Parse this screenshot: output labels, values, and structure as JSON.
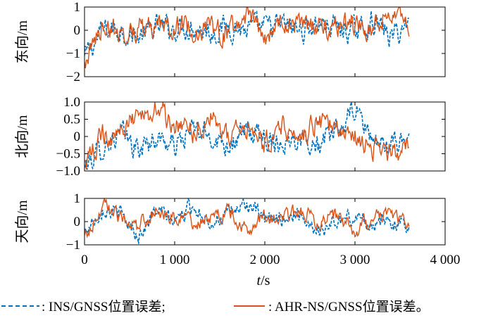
{
  "chart_data": [
    {
      "type": "line",
      "ylabel": "东向/m",
      "ylim": [
        -2,
        1
      ],
      "yticks": [
        -2,
        -1,
        0,
        1
      ],
      "ytick_labels": [
        "−2",
        "−1",
        "0",
        "1"
      ],
      "xlim": [
        0,
        4000
      ],
      "x_range_of_data": [
        0,
        3600
      ],
      "series": [
        {
          "name": "INS/GNSS位置误差",
          "color": "#0072BD",
          "style": "dashed",
          "x": [
            0,
            200,
            400,
            600,
            800,
            1000,
            1200,
            1400,
            1600,
            1800,
            2000,
            2200,
            2400,
            2600,
            2800,
            3000,
            3200,
            3400,
            3600
          ],
          "values": [
            -1.2,
            0.0,
            0.05,
            -0.3,
            0.1,
            0.1,
            0.2,
            -0.1,
            0.2,
            0.0,
            0.1,
            0.2,
            0.0,
            0.3,
            0.1,
            -0.1,
            0.4,
            -0.3,
            0.3
          ]
        },
        {
          "name": "AHR-NS/GNSS位置误差",
          "color": "#D95319",
          "style": "solid",
          "x": [
            0,
            200,
            400,
            600,
            800,
            1000,
            1200,
            1400,
            1600,
            1800,
            2000,
            2200,
            2400,
            2600,
            2800,
            3000,
            3200,
            3400,
            3600
          ],
          "values": [
            -1.5,
            0.3,
            -0.2,
            0.1,
            0.0,
            0.3,
            0.0,
            0.2,
            -0.2,
            0.8,
            -0.3,
            0.4,
            0.2,
            0.1,
            0.3,
            0.2,
            0.0,
            0.9,
            -0.2
          ]
        }
      ]
    },
    {
      "type": "line",
      "ylabel": "北向/m",
      "ylim": [
        -1.0,
        1.0
      ],
      "yticks": [
        -1.0,
        -0.5,
        0,
        0.5,
        1.0
      ],
      "ytick_labels": [
        "−1.0",
        "−0.5",
        "0",
        "0.5",
        "1.0"
      ],
      "xlim": [
        0,
        4000
      ],
      "x_range_of_data": [
        0,
        3600
      ],
      "series": [
        {
          "name": "INS/GNSS位置误差",
          "color": "#0072BD",
          "style": "dashed",
          "x": [
            0,
            200,
            400,
            600,
            800,
            1000,
            1200,
            1400,
            1600,
            1800,
            2000,
            2200,
            2400,
            2600,
            2800,
            3000,
            3200,
            3400,
            3600
          ],
          "values": [
            -0.9,
            -0.3,
            0.1,
            -0.4,
            0.0,
            -0.3,
            0.2,
            0.0,
            -0.2,
            0.1,
            0.0,
            -0.2,
            0.1,
            -0.3,
            0.1,
            0.8,
            -0.1,
            -0.3,
            0.0
          ]
        },
        {
          "name": "AHR-NS/GNSS位置误差",
          "color": "#D95319",
          "style": "solid",
          "x": [
            0,
            200,
            400,
            600,
            800,
            1000,
            1200,
            1400,
            1600,
            1800,
            2000,
            2200,
            2400,
            2600,
            2800,
            3000,
            3200,
            3400,
            3600
          ],
          "values": [
            -0.8,
            0.0,
            0.2,
            0.5,
            0.9,
            0.3,
            0.1,
            0.6,
            0.0,
            0.2,
            -0.2,
            0.4,
            0.0,
            0.5,
            0.2,
            0.0,
            -0.3,
            -0.5,
            -0.2
          ]
        }
      ]
    },
    {
      "type": "line",
      "ylabel": "天向/m",
      "ylim": [
        -1,
        1
      ],
      "yticks": [
        -1,
        0,
        1
      ],
      "ytick_labels": [
        "−1",
        "0",
        "1"
      ],
      "xlim": [
        0,
        4000
      ],
      "x_range_of_data": [
        0,
        3600
      ],
      "xticks": [
        0,
        1000,
        2000,
        3000,
        4000
      ],
      "xtick_labels": [
        "0",
        "1 000",
        "2 000",
        "3 000",
        "4 000"
      ],
      "xlabel_italic": "t",
      "xlabel_unit": "/s",
      "series": [
        {
          "name": "INS/GNSS位置误差",
          "color": "#0072BD",
          "style": "dashed",
          "x": [
            0,
            200,
            400,
            600,
            800,
            1000,
            1200,
            1400,
            1600,
            1800,
            2000,
            2200,
            2400,
            2600,
            2800,
            3000,
            3200,
            3400,
            3600
          ],
          "values": [
            -0.5,
            0.6,
            0.3,
            -0.6,
            0.5,
            0.0,
            0.7,
            0.0,
            0.3,
            0.8,
            0.0,
            0.2,
            0.3,
            -0.4,
            0.0,
            0.2,
            -0.1,
            0.0,
            -0.2
          ]
        },
        {
          "name": "AHR-NS/GNSS位置误差",
          "color": "#D95319",
          "style": "solid",
          "x": [
            0,
            200,
            400,
            600,
            800,
            1000,
            1200,
            1400,
            1600,
            1800,
            2000,
            2200,
            2400,
            2600,
            2800,
            3000,
            3200,
            3400,
            3600
          ],
          "values": [
            -0.7,
            0.7,
            0.2,
            -0.2,
            0.6,
            0.2,
            0.0,
            0.1,
            0.4,
            -0.3,
            0.2,
            0.0,
            0.6,
            -0.2,
            0.3,
            -0.4,
            0.1,
            0.3,
            -0.3
          ]
        }
      ]
    }
  ],
  "legend": {
    "items": [
      {
        "label": ": INS/GNSS位置误差;",
        "color": "#0072BD",
        "style": "dashed"
      },
      {
        "label": ": AHR-NS/GNSS位置误差。",
        "color": "#D95319",
        "style": "solid"
      }
    ]
  }
}
